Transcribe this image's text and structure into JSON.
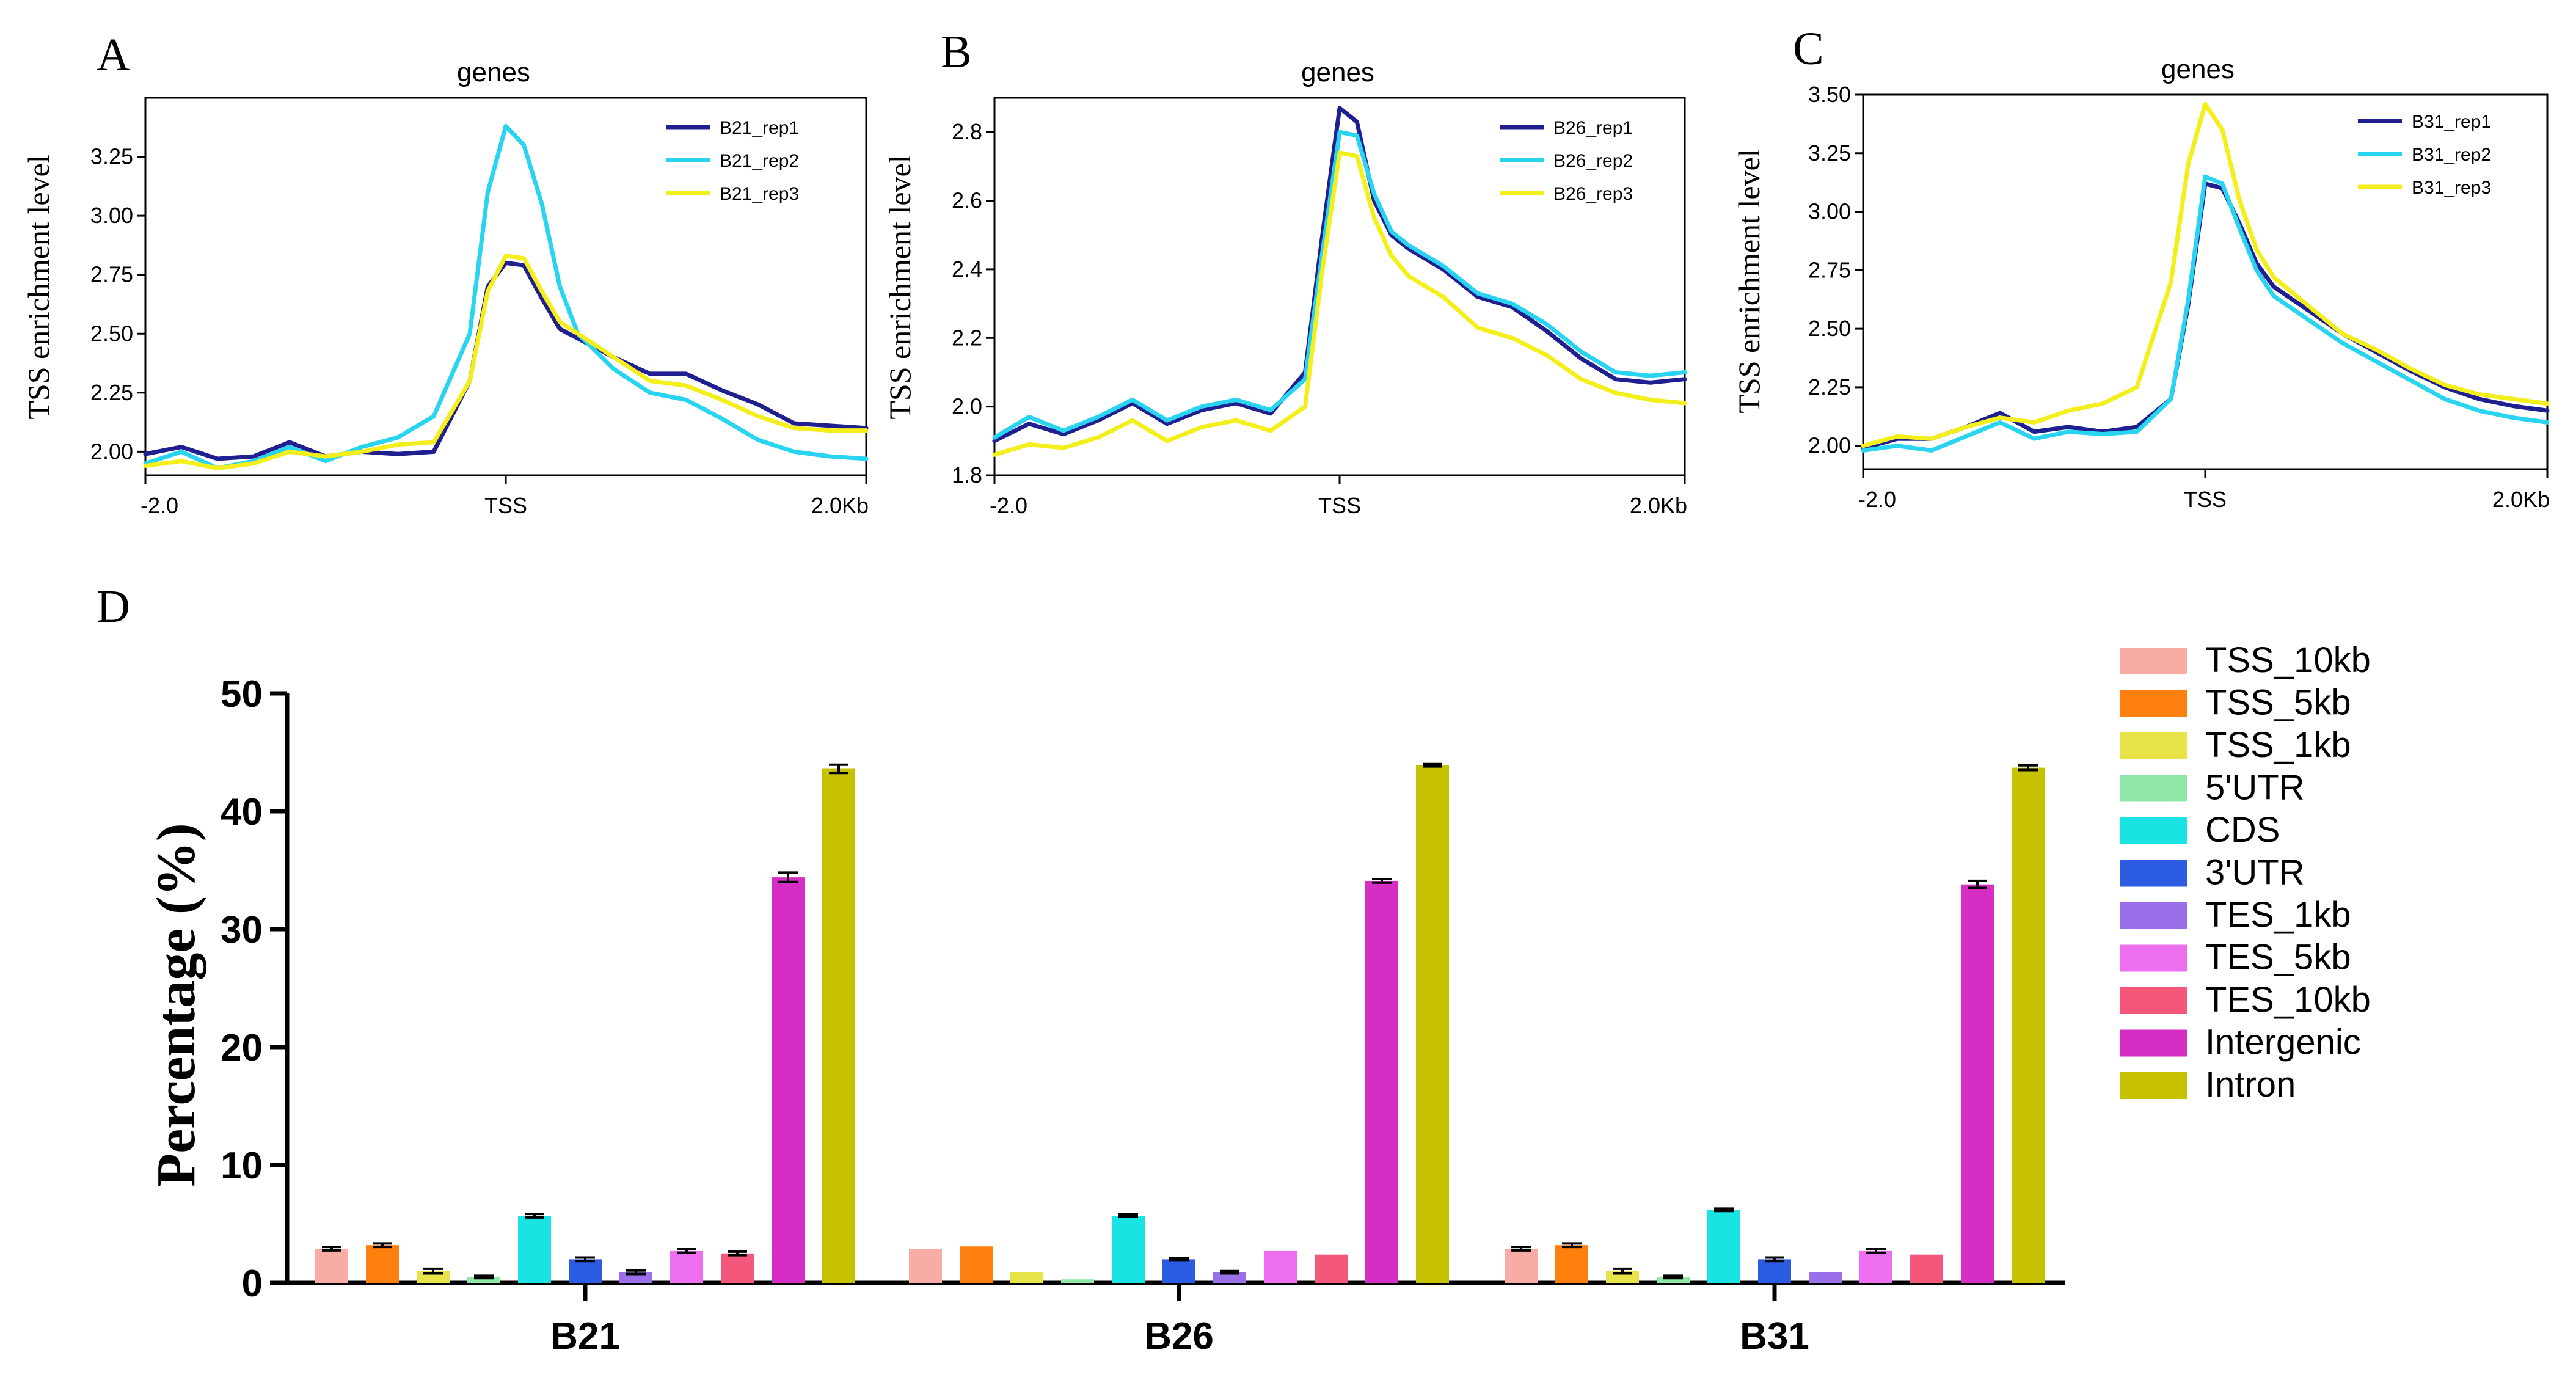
{
  "chart_data": [
    {
      "panel": "A",
      "type": "line",
      "title": "genes",
      "ylabel": "TSS enrichment level",
      "xlabel": "",
      "x_ticks": [
        "-2.0",
        "TSS",
        "2.0Kb"
      ],
      "x_range": [
        -2.0,
        2.0
      ],
      "ylim": [
        1.9,
        3.5
      ],
      "y_ticks": [
        "2.00",
        "2.25",
        "2.50",
        "2.75",
        "3.00",
        "3.25"
      ],
      "y_tick_values": [
        2.0,
        2.25,
        2.5,
        2.75,
        3.0,
        3.25
      ],
      "x": [
        -2.0,
        -1.8,
        -1.6,
        -1.4,
        -1.2,
        -1.0,
        -0.8,
        -0.6,
        -0.4,
        -0.2,
        -0.1,
        0.0,
        0.1,
        0.2,
        0.3,
        0.4,
        0.6,
        0.8,
        1.0,
        1.2,
        1.4,
        1.6,
        1.8,
        2.0
      ],
      "series": [
        {
          "name": "B21_rep1",
          "color": "#1f1f8f",
          "values": [
            1.99,
            2.02,
            1.97,
            1.98,
            2.04,
            1.98,
            2.0,
            1.99,
            2.0,
            2.3,
            2.7,
            2.8,
            2.79,
            2.65,
            2.52,
            2.48,
            2.4,
            2.33,
            2.33,
            2.26,
            2.2,
            2.12,
            2.11,
            2.1
          ]
        },
        {
          "name": "B21_rep2",
          "color": "#29d4f0",
          "values": [
            1.95,
            2.0,
            1.93,
            1.96,
            2.02,
            1.96,
            2.02,
            2.06,
            2.15,
            2.5,
            3.1,
            3.38,
            3.3,
            3.05,
            2.7,
            2.5,
            2.35,
            2.25,
            2.22,
            2.14,
            2.05,
            2.0,
            1.98,
            1.97
          ]
        },
        {
          "name": "B21_rep3",
          "color": "#f4ee1a",
          "values": [
            1.94,
            1.96,
            1.93,
            1.95,
            2.0,
            1.98,
            2.0,
            2.03,
            2.04,
            2.3,
            2.68,
            2.83,
            2.82,
            2.68,
            2.55,
            2.5,
            2.4,
            2.3,
            2.28,
            2.22,
            2.15,
            2.1,
            2.09,
            2.09
          ]
        }
      ]
    },
    {
      "panel": "B",
      "type": "line",
      "title": "genes",
      "ylabel": "TSS enrichment level",
      "xlabel": "",
      "x_ticks": [
        "-2.0",
        "TSS",
        "2.0Kb"
      ],
      "x_range": [
        -2.0,
        2.0
      ],
      "ylim": [
        1.8,
        2.9
      ],
      "y_ticks": [
        "1.8",
        "2.0",
        "2.2",
        "2.4",
        "2.6",
        "2.8"
      ],
      "y_tick_values": [
        1.8,
        2.0,
        2.2,
        2.4,
        2.6,
        2.8
      ],
      "x": [
        -2.0,
        -1.8,
        -1.6,
        -1.4,
        -1.2,
        -1.0,
        -0.8,
        -0.6,
        -0.4,
        -0.2,
        -0.1,
        0.0,
        0.1,
        0.2,
        0.3,
        0.4,
        0.6,
        0.8,
        1.0,
        1.2,
        1.4,
        1.6,
        1.8,
        2.0
      ],
      "series": [
        {
          "name": "B26_rep1",
          "color": "#1f1f8f",
          "values": [
            1.9,
            1.95,
            1.92,
            1.96,
            2.01,
            1.95,
            1.99,
            2.01,
            1.98,
            2.1,
            2.5,
            2.87,
            2.83,
            2.6,
            2.5,
            2.46,
            2.4,
            2.32,
            2.29,
            2.22,
            2.14,
            2.08,
            2.07,
            2.08
          ]
        },
        {
          "name": "B26_rep2",
          "color": "#29d4f0",
          "values": [
            1.91,
            1.97,
            1.93,
            1.97,
            2.02,
            1.96,
            2.0,
            2.02,
            1.99,
            2.08,
            2.45,
            2.8,
            2.79,
            2.62,
            2.51,
            2.47,
            2.41,
            2.33,
            2.3,
            2.24,
            2.16,
            2.1,
            2.09,
            2.1
          ]
        },
        {
          "name": "B26_rep3",
          "color": "#f4ee1a",
          "values": [
            1.86,
            1.89,
            1.88,
            1.91,
            1.96,
            1.9,
            1.94,
            1.96,
            1.93,
            2.0,
            2.4,
            2.74,
            2.73,
            2.55,
            2.44,
            2.38,
            2.32,
            2.23,
            2.2,
            2.15,
            2.08,
            2.04,
            2.02,
            2.01
          ]
        }
      ]
    },
    {
      "panel": "C",
      "type": "line",
      "title": "genes",
      "ylabel": "TSS enrichment level",
      "xlabel": "",
      "x_ticks": [
        "-2.0",
        "TSS",
        "2.0Kb"
      ],
      "x_range": [
        -2.0,
        2.0
      ],
      "ylim": [
        1.9,
        3.5
      ],
      "y_ticks": [
        "2.00",
        "2.25",
        "2.50",
        "2.75",
        "3.00",
        "3.25",
        "3.50"
      ],
      "y_tick_values": [
        2.0,
        2.25,
        2.5,
        2.75,
        3.0,
        3.25,
        3.5
      ],
      "x": [
        -2.0,
        -1.8,
        -1.6,
        -1.4,
        -1.2,
        -1.0,
        -0.8,
        -0.6,
        -0.4,
        -0.2,
        -0.1,
        0.0,
        0.1,
        0.2,
        0.3,
        0.4,
        0.6,
        0.8,
        1.0,
        1.2,
        1.4,
        1.6,
        1.8,
        2.0
      ],
      "series": [
        {
          "name": "B31_rep1",
          "color": "#1f1f8f",
          "values": [
            1.99,
            2.03,
            2.03,
            2.08,
            2.14,
            2.06,
            2.08,
            2.06,
            2.08,
            2.2,
            2.6,
            3.12,
            3.1,
            2.95,
            2.78,
            2.68,
            2.58,
            2.48,
            2.4,
            2.32,
            2.25,
            2.2,
            2.17,
            2.15
          ]
        },
        {
          "name": "B31_rep2",
          "color": "#29d4f0",
          "values": [
            1.98,
            2.0,
            1.98,
            2.04,
            2.1,
            2.03,
            2.06,
            2.05,
            2.06,
            2.2,
            2.62,
            3.15,
            3.12,
            2.93,
            2.75,
            2.64,
            2.54,
            2.44,
            2.36,
            2.28,
            2.2,
            2.15,
            2.12,
            2.1
          ]
        },
        {
          "name": "B31_rep3",
          "color": "#f4ee1a",
          "values": [
            2.0,
            2.04,
            2.03,
            2.08,
            2.12,
            2.1,
            2.15,
            2.18,
            2.25,
            2.7,
            3.2,
            3.46,
            3.35,
            3.05,
            2.84,
            2.72,
            2.6,
            2.48,
            2.41,
            2.33,
            2.26,
            2.22,
            2.2,
            2.18
          ]
        }
      ]
    },
    {
      "panel": "D",
      "type": "bar",
      "title": "",
      "xlabel": "",
      "ylabel": "Percentage (%)",
      "ylim": [
        0,
        50
      ],
      "y_ticks": [
        "0",
        "10",
        "20",
        "30",
        "40",
        "50"
      ],
      "y_tick_values": [
        0,
        10,
        20,
        30,
        40,
        50
      ],
      "categories": [
        "B21",
        "B26",
        "B31"
      ],
      "series": [
        {
          "name": "TSS_10kb",
          "color": "#f8aca4",
          "values": [
            2.9,
            2.9,
            2.9
          ],
          "errors": [
            0.15,
            0.0,
            0.15
          ]
        },
        {
          "name": "TSS_5kb",
          "color": "#ff7f0e",
          "values": [
            3.2,
            3.1,
            3.2
          ],
          "errors": [
            0.15,
            0.0,
            0.15
          ]
        },
        {
          "name": "TSS_1kb",
          "color": "#e9e34a",
          "values": [
            1.0,
            0.9,
            1.0
          ],
          "errors": [
            0.2,
            0.0,
            0.2
          ]
        },
        {
          "name": "5'UTR",
          "color": "#8fe8a8",
          "values": [
            0.5,
            0.3,
            0.5
          ],
          "errors": [
            0.1,
            0.0,
            0.1
          ]
        },
        {
          "name": "CDS",
          "color": "#19e3e3",
          "values": [
            5.7,
            5.7,
            6.2
          ],
          "errors": [
            0.15,
            0.1,
            0.1
          ]
        },
        {
          "name": "3'UTR",
          "color": "#2a5be0",
          "values": [
            2.0,
            2.0,
            2.0
          ],
          "errors": [
            0.15,
            0.1,
            0.15
          ]
        },
        {
          "name": "TES_1kb",
          "color": "#9a70ea",
          "values": [
            0.9,
            0.9,
            0.9
          ],
          "errors": [
            0.15,
            0.1,
            0.0
          ]
        },
        {
          "name": "TES_5kb",
          "color": "#ee6ef0",
          "values": [
            2.7,
            2.7,
            2.7
          ],
          "errors": [
            0.15,
            0.0,
            0.15
          ]
        },
        {
          "name": "TES_10kb",
          "color": "#f4577a",
          "values": [
            2.5,
            2.4,
            2.4
          ],
          "errors": [
            0.15,
            0.0,
            0.0
          ]
        },
        {
          "name": "Intergenic",
          "color": "#d62ec4",
          "values": [
            34.4,
            34.1,
            33.8
          ],
          "errors": [
            0.4,
            0.15,
            0.3
          ]
        },
        {
          "name": "Intron",
          "color": "#c6c200",
          "values": [
            43.6,
            43.9,
            43.7
          ],
          "errors": [
            0.35,
            0.1,
            0.2
          ]
        }
      ]
    }
  ]
}
